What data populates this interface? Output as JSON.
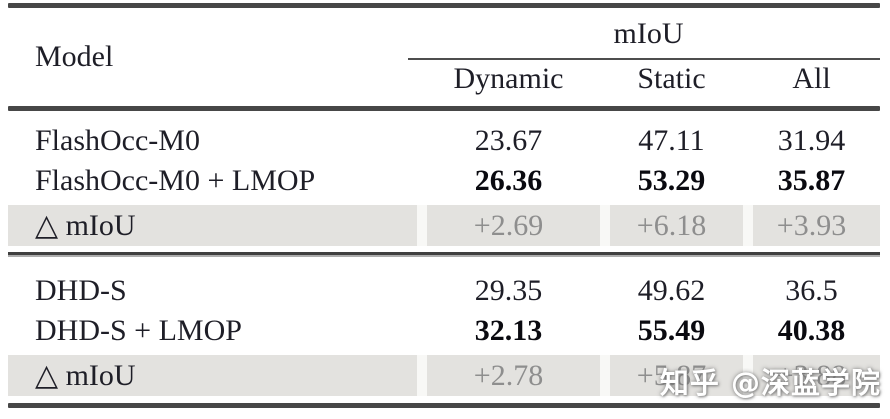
{
  "table": {
    "header": {
      "model_label": "Model",
      "group_label": "mIoU",
      "columns": [
        "Dynamic",
        "Static",
        "All"
      ]
    },
    "blocks": [
      {
        "rows": [
          {
            "model": "FlashOcc-M0",
            "values": [
              "23.67",
              "47.11",
              "31.94"
            ]
          },
          {
            "model": "FlashOcc-M0 + LMOP",
            "values": [
              "26.36",
              "53.29",
              "35.87"
            ]
          },
          {
            "model": "△ mIoU",
            "values": [
              "+2.69",
              "+6.18",
              "+3.93"
            ]
          }
        ]
      },
      {
        "rows": [
          {
            "model": "DHD-S",
            "values": [
              "29.35",
              "49.62",
              "36.5"
            ]
          },
          {
            "model": "DHD-S + LMOP",
            "values": [
              "32.13",
              "55.49",
              "40.38"
            ]
          },
          {
            "model": "△ mIoU",
            "values": [
              "+2.78",
              "+5.87",
              "+3.88"
            ]
          }
        ]
      }
    ]
  },
  "watermark": {
    "text": "知乎 @深蓝学院"
  },
  "colors": {
    "rule": "#474747",
    "highlight_row_bg": "#e3e2df",
    "delta_text": "#8e8e8e",
    "body_text": "#1e1e27",
    "watermark_text": "#ffffff"
  }
}
